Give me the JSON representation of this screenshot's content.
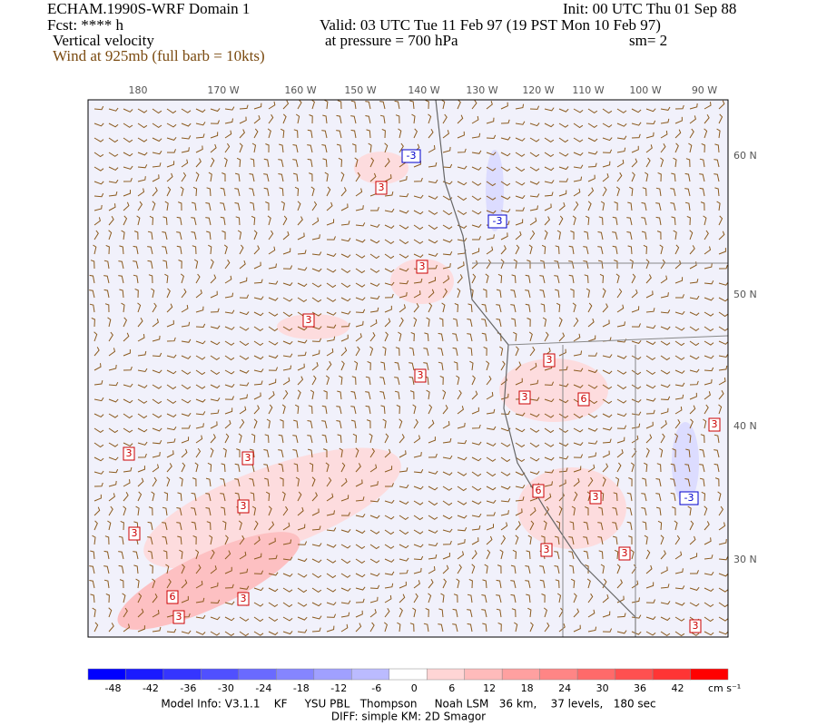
{
  "header": {
    "title": "ECHAM.1990S-WRF Domain 1",
    "init": "Init: 00 UTC Thu 01 Sep 88",
    "forecast": "Fcst: **** h",
    "valid": "Valid: 03 UTC Tue 11 Feb 97 (19 PST Mon 10 Feb 97)",
    "field": "Vertical velocity",
    "pressure": "at pressure =  700 hPa",
    "smoothing": "sm= 2",
    "wind": "Wind at 925mb (full barb = 10kts)"
  },
  "map": {
    "lon_labels": [
      "180",
      "170 W",
      "160 W",
      "150 W",
      "140 W",
      "130 W",
      "120 W",
      "110 W",
      "100 W",
      "90 W"
    ],
    "lat_labels": [
      "60 N",
      "50 N",
      "40 N",
      "30 N"
    ],
    "contour_labels": [
      "3",
      "3",
      "3",
      "3",
      "3",
      "3",
      "6",
      "3",
      "3",
      "3",
      "3",
      "6",
      "3",
      "3",
      "3",
      "6",
      "3",
      "3",
      "3",
      "3",
      "-3",
      "-3",
      "-3"
    ]
  },
  "colorbar": {
    "ticks": [
      -48,
      -42,
      -36,
      -30,
      -24,
      -18,
      -12,
      -6,
      0,
      6,
      12,
      18,
      24,
      30,
      36,
      42
    ],
    "colors": [
      "#0000ff",
      "#1a1aff",
      "#3535ff",
      "#5050ff",
      "#6a6aff",
      "#8585ff",
      "#a0a0ff",
      "#bbbbff",
      "#ffffff",
      "#ffd5d5",
      "#ffbbbb",
      "#ffa0a0",
      "#ff8585",
      "#ff6a6a",
      "#ff5050",
      "#ff3535",
      "#ff0000"
    ],
    "unit": "cm s⁻¹"
  },
  "footer": {
    "model_info": "Model Info: V3.1.1    KF     YSU PBL   Thompson     Noah LSM   36 km,    37 levels,   180 sec",
    "diff": "DIFF: simple KM: 2D Smagor"
  }
}
